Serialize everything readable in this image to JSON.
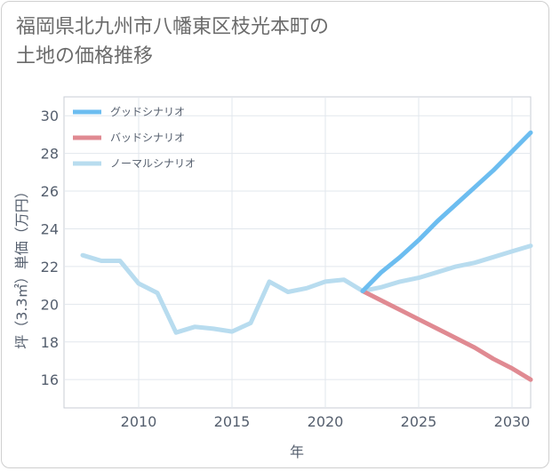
{
  "title_line1": "福岡県北九州市八幡東区枝光本町の",
  "title_line2": "土地の価格推移",
  "chart_data": {
    "type": "line",
    "title": "福岡県北九州市八幡東区枝光本町の土地の価格推移",
    "xlabel": "年",
    "ylabel": "坪（3.3㎡）単価（万円）",
    "xlim": [
      2006,
      2031
    ],
    "ylim": [
      14.5,
      31
    ],
    "xticks": [
      2010,
      2015,
      2020,
      2025,
      2030
    ],
    "yticks": [
      16,
      18,
      20,
      22,
      24,
      26,
      28,
      30
    ],
    "grid": true,
    "legend_position": "top-left",
    "series": [
      {
        "name": "グッドシナリオ",
        "color": "#6cbdf0",
        "x": [
          2022,
          2023,
          2024,
          2025,
          2026,
          2027,
          2028,
          2029,
          2030,
          2031
        ],
        "y": [
          20.7,
          21.7,
          22.5,
          23.4,
          24.4,
          25.3,
          26.2,
          27.1,
          28.1,
          29.1
        ]
      },
      {
        "name": "バッドシナリオ",
        "color": "#e08a92",
        "x": [
          2022,
          2023,
          2024,
          2025,
          2026,
          2027,
          2028,
          2029,
          2030,
          2031
        ],
        "y": [
          20.7,
          20.2,
          19.7,
          19.2,
          18.7,
          18.2,
          17.7,
          17.1,
          16.6,
          16.0
        ]
      },
      {
        "name": "ノーマルシナリオ",
        "color": "#b8dcef",
        "x": [
          2007,
          2008,
          2009,
          2010,
          2011,
          2012,
          2013,
          2014,
          2015,
          2016,
          2017,
          2018,
          2019,
          2020,
          2021,
          2022,
          2023,
          2024,
          2025,
          2026,
          2027,
          2028,
          2029,
          2030,
          2031
        ],
        "y": [
          22.6,
          22.3,
          22.3,
          21.1,
          20.6,
          18.5,
          18.8,
          18.7,
          18.55,
          19.0,
          21.2,
          20.65,
          20.85,
          21.2,
          21.3,
          20.7,
          20.9,
          21.2,
          21.4,
          21.7,
          22.0,
          22.2,
          22.5,
          22.8,
          23.1
        ]
      }
    ]
  }
}
